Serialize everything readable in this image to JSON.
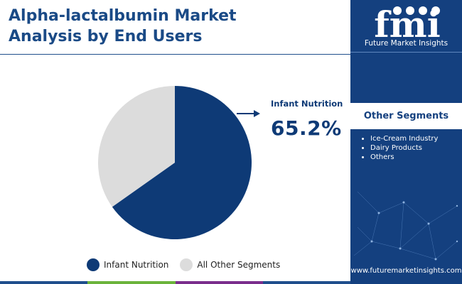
{
  "header": {
    "title_line1": "Alpha-lactalbumin Market",
    "title_line2": "Analysis by End Users"
  },
  "colors": {
    "primary": "#14407f",
    "pie_primary": "#0e3a76",
    "pie_secondary": "#dcdcdc",
    "bottom_bar": [
      "#1f4e8c",
      "#6bb33b",
      "#7a2d8c",
      "#1f4e8c"
    ]
  },
  "chart_data": {
    "type": "pie",
    "slices": [
      {
        "label": "Infant Nutrition",
        "value": 65.2,
        "color": "#0e3a76"
      },
      {
        "label": "All Other Segments",
        "value": 34.8,
        "color": "#dcdcdc"
      }
    ],
    "callout": {
      "label": "Infant Nutrition",
      "value": "65.2%"
    },
    "legend_position": "bottom"
  },
  "legend": {
    "items": [
      {
        "label": "Infant Nutrition",
        "color": "#0e3a76"
      },
      {
        "label": "All Other Segments",
        "color": "#dcdcdc"
      }
    ]
  },
  "sidebar": {
    "logo_text": "fmi",
    "logo_caption": "Future Market Insights",
    "segments_title": "Other Segments",
    "segments": [
      "Ice-Cream Industry",
      "Dairy Products",
      "Others"
    ],
    "website": "www.futuremarketinsights.com"
  }
}
